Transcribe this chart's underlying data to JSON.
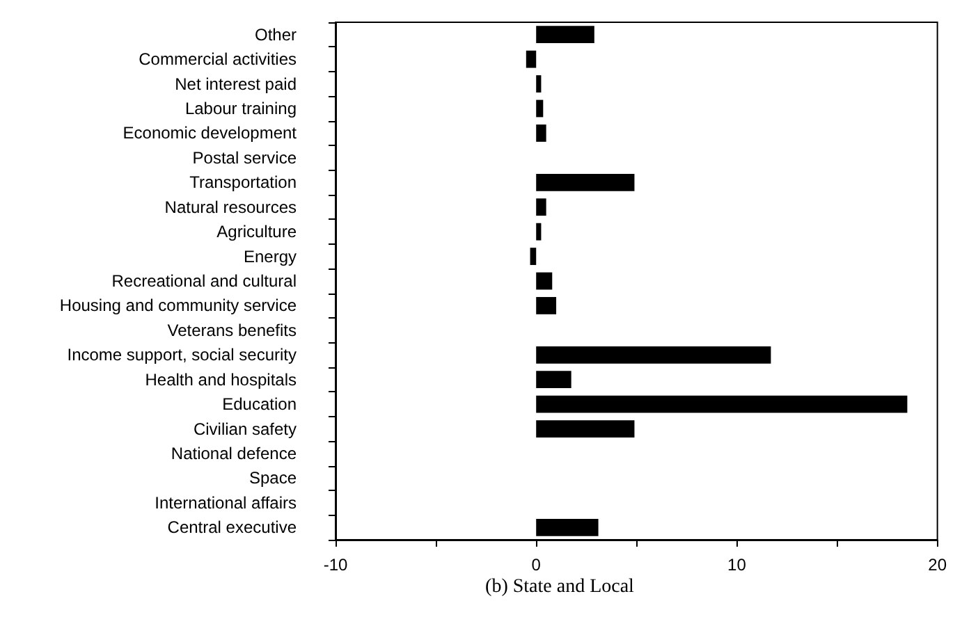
{
  "chart_data": {
    "type": "bar",
    "orientation": "horizontal",
    "title": "(b) State and Local",
    "categories": [
      "Other",
      "Commercial activities",
      "Net interest paid",
      "Labour training",
      "Economic development",
      "Postal service",
      "Transportation",
      "Natural resources",
      "Agriculture",
      "Energy",
      "Recreational and cultural",
      "Housing and community service",
      "Veterans benefits",
      "Income support, social security",
      "Health and hospitals",
      "Education",
      "Civilian safety",
      "National defence",
      "Space",
      "International affairs",
      "Central executive"
    ],
    "values": [
      2.9,
      -0.5,
      0.25,
      0.35,
      0.5,
      0,
      4.9,
      0.5,
      0.25,
      -0.3,
      0.8,
      1.0,
      0,
      11.7,
      1.75,
      18.5,
      4.9,
      0,
      0,
      0,
      3.1
    ],
    "color": "#000000",
    "xlim": [
      -10,
      20
    ],
    "xticks": [
      -10,
      {
        "value": -5,
        "label": null
      },
      0,
      {
        "value": 5,
        "label": null
      },
      10,
      {
        "value": 15,
        "label": null
      },
      20
    ],
    "grid": false
  }
}
